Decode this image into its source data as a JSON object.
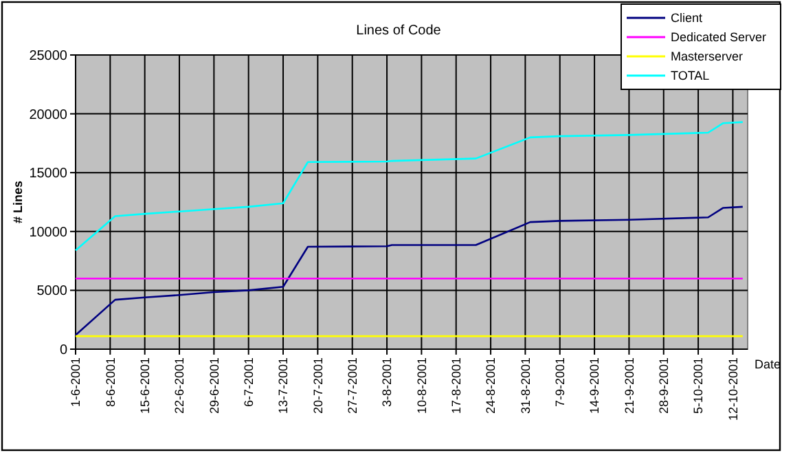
{
  "chart_data": {
    "type": "line",
    "title": "Lines of Code",
    "xlabel": "Date",
    "ylabel": "# Lines",
    "xlim": [
      "2001-06-01",
      "2001-10-15"
    ],
    "xticks": [
      {
        "value": "2001-06-01",
        "label": "1-6-2001"
      },
      {
        "value": "2001-06-08",
        "label": "8-6-2001"
      },
      {
        "value": "2001-06-15",
        "label": "15-6-2001"
      },
      {
        "value": "2001-06-22",
        "label": "22-6-2001"
      },
      {
        "value": "2001-06-29",
        "label": "29-6-2001"
      },
      {
        "value": "2001-07-06",
        "label": "6-7-2001"
      },
      {
        "value": "2001-07-13",
        "label": "13-7-2001"
      },
      {
        "value": "2001-07-20",
        "label": "20-7-2001"
      },
      {
        "value": "2001-07-27",
        "label": "27-7-2001"
      },
      {
        "value": "2001-08-03",
        "label": "3-8-2001"
      },
      {
        "value": "2001-08-10",
        "label": "10-8-2001"
      },
      {
        "value": "2001-08-17",
        "label": "17-8-2001"
      },
      {
        "value": "2001-08-24",
        "label": "24-8-2001"
      },
      {
        "value": "2001-08-31",
        "label": "31-8-2001"
      },
      {
        "value": "2001-09-07",
        "label": "7-9-2001"
      },
      {
        "value": "2001-09-14",
        "label": "14-9-2001"
      },
      {
        "value": "2001-09-21",
        "label": "21-9-2001"
      },
      {
        "value": "2001-09-28",
        "label": "28-9-2001"
      },
      {
        "value": "2001-10-05",
        "label": "5-10-2001"
      },
      {
        "value": "2001-10-12",
        "label": "12-10-2001"
      }
    ],
    "ylim": [
      0,
      25000
    ],
    "yticks": [
      0,
      5000,
      10000,
      15000,
      20000,
      25000
    ],
    "grid": true,
    "legend": "top right",
    "marker": "none",
    "line_style": "solid",
    "series": [
      {
        "name": "Client",
        "color": "#000080",
        "x": [
          "2001-06-01",
          "2001-06-09",
          "2001-06-15",
          "2001-06-22",
          "2001-06-29",
          "2001-07-06",
          "2001-07-13",
          "2001-07-18",
          "2001-08-03",
          "2001-08-04",
          "2001-08-21",
          "2001-09-01",
          "2001-09-07",
          "2001-09-21",
          "2001-10-07",
          "2001-10-10",
          "2001-10-14"
        ],
        "values": [
          1200,
          4200,
          4400,
          4600,
          4850,
          5000,
          5300,
          8700,
          8750,
          8850,
          8850,
          10800,
          10900,
          11000,
          11200,
          12000,
          12100
        ]
      },
      {
        "name": "Dedicated Server",
        "color": "#ff00ff",
        "x": [
          "2001-06-01",
          "2001-10-14"
        ],
        "values": [
          6000,
          6000
        ]
      },
      {
        "name": "Masterserver",
        "color": "#ffff00",
        "x": [
          "2001-06-01",
          "2001-10-14"
        ],
        "values": [
          1100,
          1100
        ]
      },
      {
        "name": "TOTAL",
        "color": "#00ffff",
        "x": [
          "2001-06-01",
          "2001-06-09",
          "2001-06-15",
          "2001-06-22",
          "2001-06-29",
          "2001-07-06",
          "2001-07-13",
          "2001-07-18",
          "2001-08-03",
          "2001-08-04",
          "2001-08-21",
          "2001-09-01",
          "2001-09-07",
          "2001-09-21",
          "2001-10-07",
          "2001-10-10",
          "2001-10-14"
        ],
        "values": [
          8400,
          11300,
          11500,
          11700,
          11900,
          12100,
          12400,
          15900,
          15950,
          16000,
          16200,
          18000,
          18100,
          18200,
          18400,
          19200,
          19300
        ]
      }
    ]
  }
}
